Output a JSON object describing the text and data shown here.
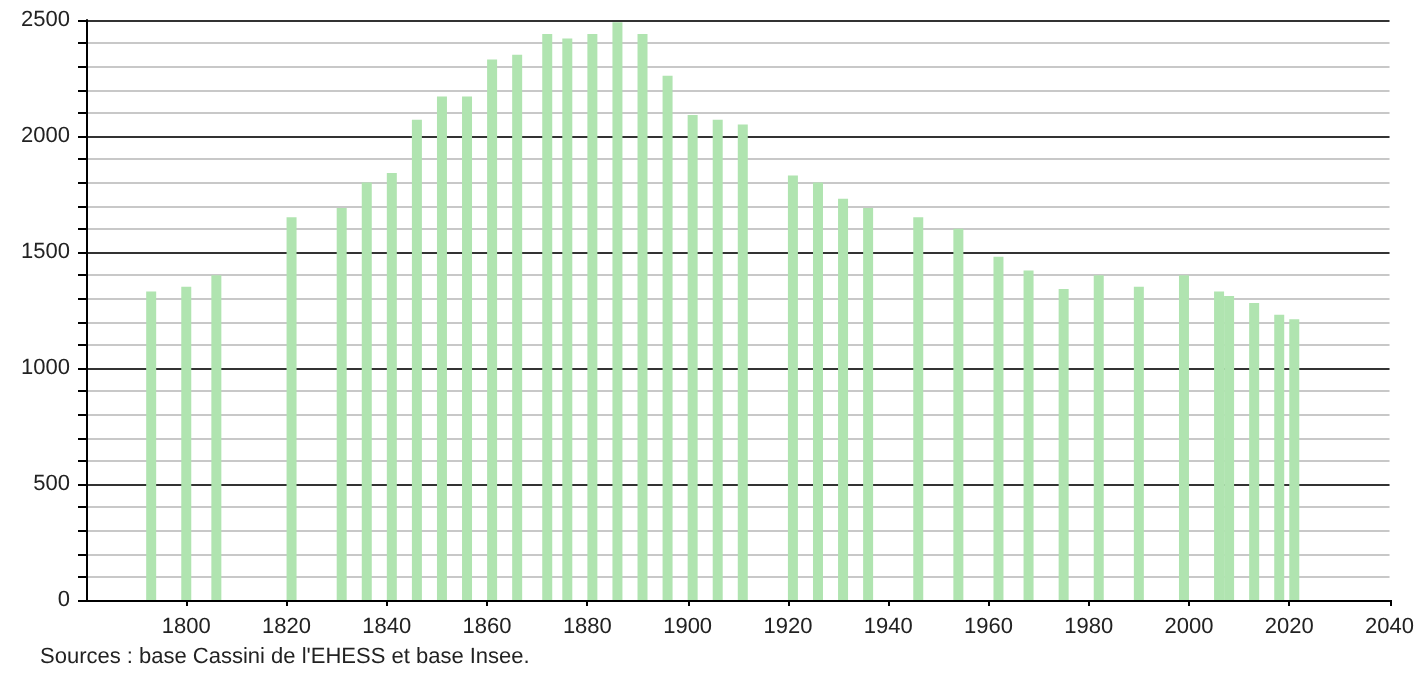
{
  "chart_data": {
    "type": "bar",
    "color": "#b0e4b0",
    "x": [
      1793,
      1800,
      1806,
      1821,
      1831,
      1836,
      1841,
      1846,
      1851,
      1856,
      1861,
      1866,
      1872,
      1876,
      1881,
      1886,
      1891,
      1896,
      1901,
      1906,
      1911,
      1921,
      1926,
      1931,
      1936,
      1946,
      1954,
      1962,
      1968,
      1975,
      1982,
      1990,
      1999,
      2006,
      2008,
      2013,
      2018,
      2021
    ],
    "values": [
      1330,
      1350,
      1400,
      1650,
      1690,
      1800,
      1840,
      2070,
      2170,
      2170,
      2330,
      2350,
      2440,
      2420,
      2440,
      2490,
      2440,
      2260,
      2090,
      2070,
      2050,
      1830,
      1800,
      1730,
      1690,
      1650,
      1600,
      1480,
      1420,
      1340,
      1400,
      1350,
      1400,
      1330,
      1310,
      1280,
      1230,
      1210
    ],
    "xlim": [
      1780,
      2040
    ],
    "xticks": [
      1800,
      1820,
      1840,
      1860,
      1880,
      1900,
      1920,
      1940,
      1960,
      1980,
      2000,
      2020,
      2040
    ],
    "ylim": [
      0,
      2500
    ],
    "yticks": [
      0,
      {
        "value": 100,
        "label": null
      },
      {
        "value": 200,
        "label": null
      },
      {
        "value": 300,
        "label": null
      },
      {
        "value": 400,
        "label": null
      },
      500,
      {
        "value": 600,
        "label": null
      },
      {
        "value": 700,
        "label": null
      },
      {
        "value": 800,
        "label": null
      },
      {
        "value": 900,
        "label": null
      },
      1000,
      {
        "value": 1100,
        "label": null
      },
      {
        "value": 1200,
        "label": null
      },
      {
        "value": 1300,
        "label": null
      },
      {
        "value": 1400,
        "label": null
      },
      1500,
      {
        "value": 1600,
        "label": null
      },
      {
        "value": 1700,
        "label": null
      },
      {
        "value": 1800,
        "label": null
      },
      {
        "value": 1900,
        "label": null
      },
      2000,
      {
        "value": 2100,
        "label": null
      },
      {
        "value": 2200,
        "label": null
      },
      {
        "value": 2300,
        "label": null
      },
      {
        "value": 2400,
        "label": null
      },
      2500
    ],
    "grid": "y",
    "annotations": [
      "Sources : base Cassini de l'EHESS et base Insee."
    ]
  }
}
